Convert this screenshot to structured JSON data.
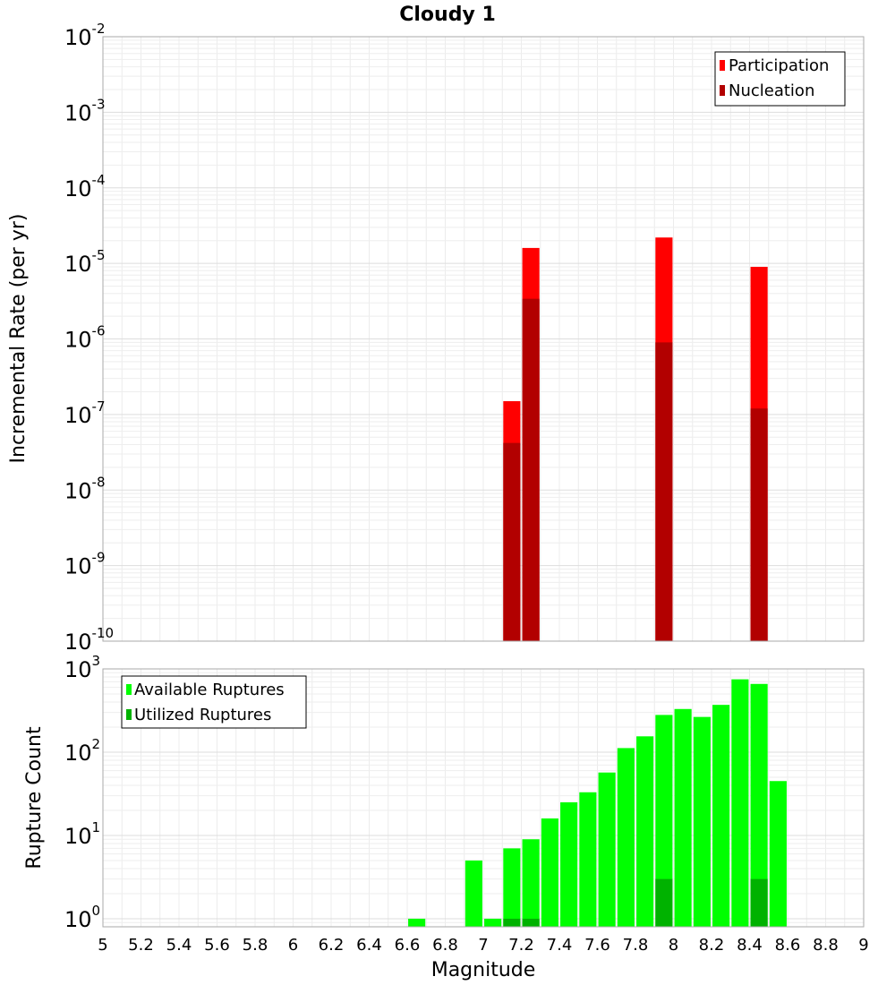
{
  "chart_data": [
    {
      "type": "bar",
      "title": "Cloudy 1",
      "xlabel": "",
      "ylabel": "Incremental Rate (per yr)",
      "xlim": [
        5,
        9
      ],
      "ylim": [
        1e-10,
        0.01
      ],
      "yscale": "log",
      "bar_width": 0.09,
      "grid": true,
      "legend_position": "top-right",
      "series": [
        {
          "name": "Participation",
          "color": "#ff0000",
          "x": [
            7.15,
            7.25,
            7.95,
            8.45
          ],
          "values": [
            1.5e-07,
            1.6e-05,
            2.2e-05,
            9e-06
          ]
        },
        {
          "name": "Nucleation",
          "color": "#b20000",
          "x": [
            7.15,
            7.25,
            7.95,
            8.45
          ],
          "values": [
            4.2e-08,
            3.4e-06,
            9e-07,
            1.2e-07
          ]
        }
      ]
    },
    {
      "type": "bar",
      "title": "",
      "xlabel": "Magnitude",
      "ylabel": "Rupture Count",
      "xlim": [
        5,
        9
      ],
      "ylim": [
        0.8,
        1000
      ],
      "yscale": "log",
      "bar_width": 0.09,
      "grid": true,
      "legend_position": "top-left",
      "x_ticks": [
        "5",
        "5.2",
        "5.4",
        "5.6",
        "5.8",
        "6",
        "6.2",
        "6.4",
        "6.6",
        "6.8",
        "7",
        "7.2",
        "7.4",
        "7.6",
        "7.8",
        "8",
        "8.2",
        "8.4",
        "8.6",
        "8.8",
        "9"
      ],
      "series": [
        {
          "name": "Available Ruptures",
          "color": "#00ff00",
          "x": [
            6.65,
            6.95,
            7.05,
            7.15,
            7.25,
            7.35,
            7.45,
            7.55,
            7.65,
            7.75,
            7.85,
            7.95,
            8.05,
            8.15,
            8.25,
            8.35,
            8.45,
            8.55
          ],
          "values": [
            1,
            5,
            1,
            7,
            9,
            16,
            25,
            33,
            57,
            112,
            155,
            280,
            330,
            265,
            370,
            750,
            660,
            45
          ]
        },
        {
          "name": "Utilized Ruptures",
          "color": "#00b200",
          "x": [
            7.15,
            7.25,
            7.95,
            8.45
          ],
          "values": [
            1,
            1,
            3,
            3
          ]
        }
      ]
    }
  ]
}
